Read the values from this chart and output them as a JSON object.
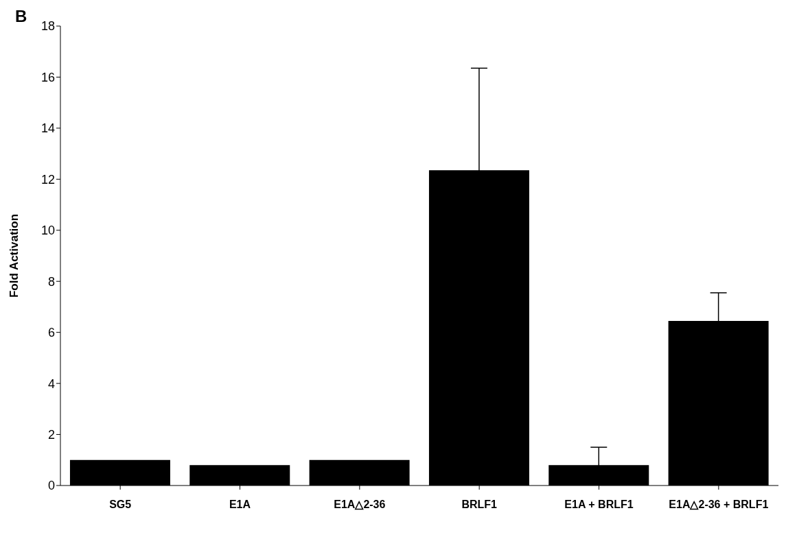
{
  "chart_data": {
    "type": "bar",
    "ylabel": "Fold Activation",
    "annotations": [
      "B"
    ],
    "categories": [
      "SG5",
      "E1A",
      "E1A△2-36",
      "BRLF1",
      "E1A + BRLF1",
      "E1A△2-36 + BRLF1"
    ],
    "values": [
      1.0,
      0.8,
      1.0,
      12.35,
      0.8,
      6.45
    ],
    "errors": [
      null,
      null,
      null,
      4.0,
      0.7,
      1.1
    ],
    "color": "#000000",
    "ylim": [
      0,
      18
    ],
    "yticks": [
      0,
      2,
      4,
      6,
      8,
      10,
      12,
      14,
      16,
      18
    ],
    "grid": false,
    "legend": false
  }
}
